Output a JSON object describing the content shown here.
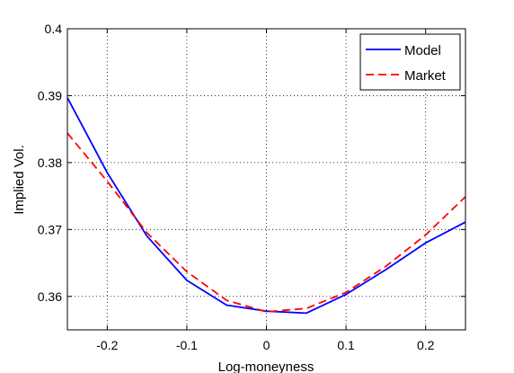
{
  "chart_data": {
    "type": "line",
    "xlabel": "Log-moneyness",
    "ylabel": "Implied Vol.",
    "xlim": [
      -0.25,
      0.25
    ],
    "ylim": [
      0.355,
      0.4
    ],
    "x_ticks": [
      -0.2,
      -0.1,
      0,
      0.1,
      0.2
    ],
    "x_tick_labels": [
      "-0.2",
      "-0.1",
      "0",
      "0.1",
      "0.2"
    ],
    "y_ticks": [
      0.36,
      0.37,
      0.38,
      0.39,
      0.4
    ],
    "y_tick_labels": [
      "0.36",
      "0.37",
      "0.38",
      "0.39",
      "0.4"
    ],
    "grid": true,
    "legend_position": "top-right",
    "series": [
      {
        "name": "Model",
        "color": "#0000ff",
        "style": "solid",
        "x": [
          -0.25,
          -0.2,
          -0.15,
          -0.1,
          -0.05,
          0,
          0.05,
          0.1,
          0.15,
          0.2,
          0.25
        ],
        "y": [
          0.3897,
          0.3785,
          0.369,
          0.3624,
          0.3587,
          0.3578,
          0.3575,
          0.3603,
          0.364,
          0.368,
          0.3711
        ]
      },
      {
        "name": "Market",
        "color": "#ff0000",
        "style": "dashed",
        "x": [
          -0.25,
          -0.2,
          -0.15,
          -0.1,
          -0.05,
          0,
          0.05,
          0.1,
          0.15,
          0.2,
          0.25
        ],
        "y": [
          0.3844,
          0.3772,
          0.3695,
          0.3637,
          0.3594,
          0.3577,
          0.3582,
          0.3606,
          0.3645,
          0.3692,
          0.3749
        ]
      }
    ]
  }
}
